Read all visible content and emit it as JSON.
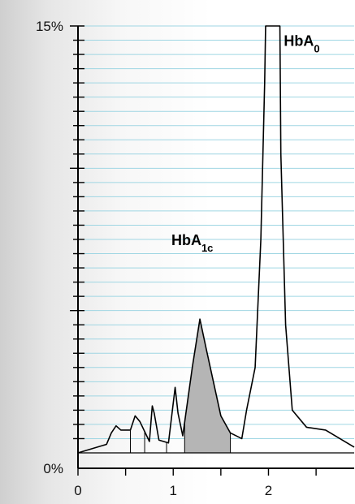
{
  "chart_data": {
    "type": "line",
    "title": "",
    "xlabel": "",
    "ylabel": "",
    "xlim": [
      0,
      2.9
    ],
    "ylim": [
      0,
      15
    ],
    "x_ticks": [
      0,
      1,
      2
    ],
    "x_tick_labels": [
      "0",
      "1",
      "2"
    ],
    "y_tick_labels": [
      {
        "value": 0,
        "label": "0%"
      },
      {
        "value": 15,
        "label": "15%"
      }
    ],
    "grid": true,
    "grid_color": "#9fd6e3",
    "line_color": "#000000",
    "shaded_color": "#b5b5b5",
    "annotations": [
      {
        "text": "HbA",
        "subscript": "1c",
        "x": 1.2,
        "y": 7.3
      },
      {
        "text": "HbA",
        "subscript": "0",
        "x": 2.35,
        "y": 14.3
      }
    ],
    "series": [
      {
        "x": [
          0,
          0.3,
          0.35,
          0.4,
          0.45,
          0.55,
          0.6,
          0.65,
          0.75,
          0.78,
          0.8,
          0.85,
          0.95,
          1.02,
          1.05,
          1.1,
          1.2,
          1.28,
          1.35,
          1.5,
          1.6,
          1.72,
          1.77,
          1.86,
          1.92,
          1.96,
          1.97,
          2.12,
          2.13,
          2.18,
          2.25,
          2.4,
          2.6,
          2.85,
          2.9
        ],
        "y": [
          0,
          0.3,
          0.7,
          0.95,
          0.8,
          0.8,
          1.3,
          1.1,
          0.4,
          1.65,
          1.4,
          0.45,
          0.35,
          2.3,
          1.4,
          0.6,
          3.0,
          4.7,
          3.6,
          1.3,
          0.7,
          0.5,
          1.5,
          3.0,
          7.5,
          13.0,
          15.0,
          15.0,
          10.5,
          4.5,
          1.5,
          0.9,
          0.8,
          0.3,
          0.2
        ]
      }
    ],
    "shaded_region": [
      1.12,
      1.6
    ],
    "drop_lines": [
      0.55,
      0.7,
      0.93,
      1.12,
      1.6
    ]
  }
}
